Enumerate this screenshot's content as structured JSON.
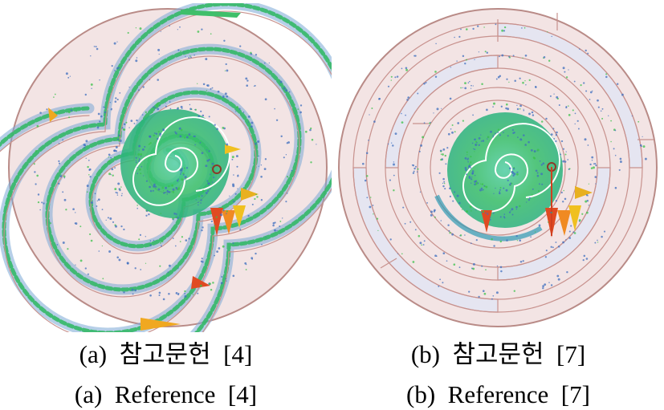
{
  "panels": [
    {
      "id": "a",
      "caption_ko": "(a)  참고문헌  [4]",
      "caption_en": "(a)  Reference  [4]",
      "colors": {
        "background_fill": "#f3e4e4",
        "track_line": "#c8928e",
        "field_particles": "#3f6fbf",
        "field_strong": "#39c24a",
        "field_hot": "#e04a22",
        "field_mid": "#f0c020"
      }
    },
    {
      "id": "b",
      "caption_ko": "(b)  참고문헌  [7]",
      "caption_en": "(b)  Reference  [7]",
      "colors": {
        "background_fill": "#f3e4e4",
        "blocked_fill": "#e5e5f1",
        "track_line": "#c8928e",
        "field_particles": "#3f6fbf",
        "field_strong": "#39c24a",
        "field_hot": "#e04a22",
        "field_mid": "#f0c020"
      }
    }
  ]
}
